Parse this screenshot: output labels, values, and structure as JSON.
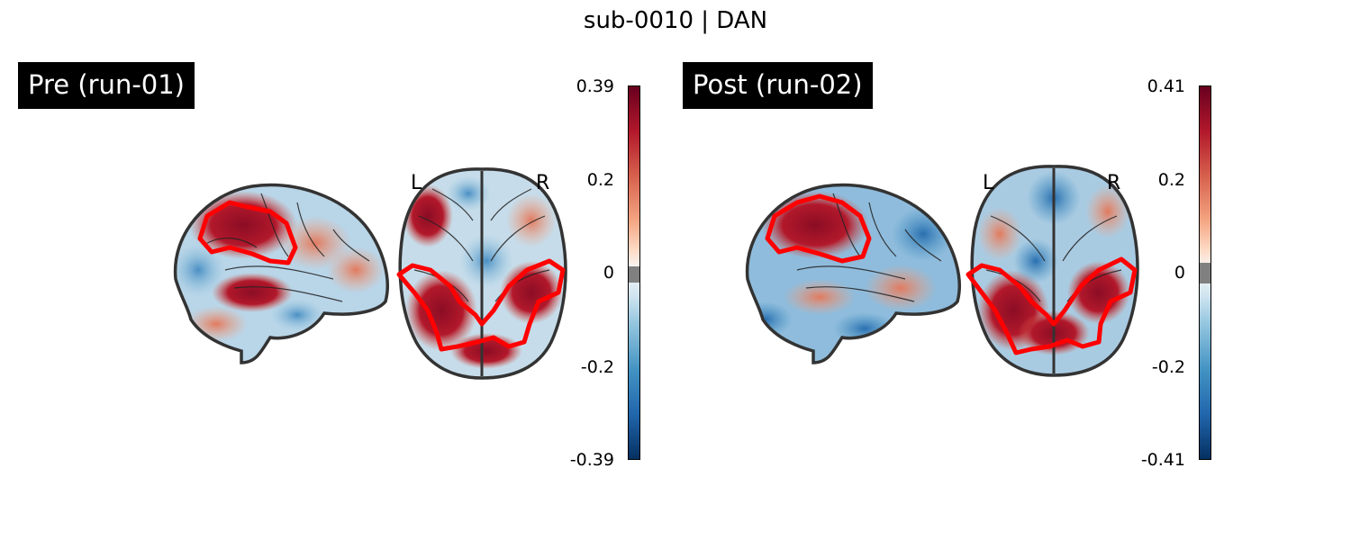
{
  "title": "sub-0010 | DAN",
  "panels": [
    {
      "label": "Pre (run-01)",
      "hemi_left": "L",
      "hemi_right": "R",
      "colorbar": {
        "max": 0.39,
        "min": -0.39,
        "ticks": [
          "0.39",
          "0.2",
          "0",
          "-0.2",
          "-0.39"
        ]
      }
    },
    {
      "label": "Post (run-02)",
      "hemi_left": "L",
      "hemi_right": "R",
      "colorbar": {
        "max": 0.41,
        "min": -0.41,
        "ticks": [
          "0.41",
          "0.2",
          "0",
          "-0.2",
          "-0.41"
        ]
      }
    }
  ],
  "colors": {
    "network_outline": "#ff0000",
    "positive_max": "#67001f",
    "negative_max": "#053061",
    "threshold_gray": "#808080"
  }
}
